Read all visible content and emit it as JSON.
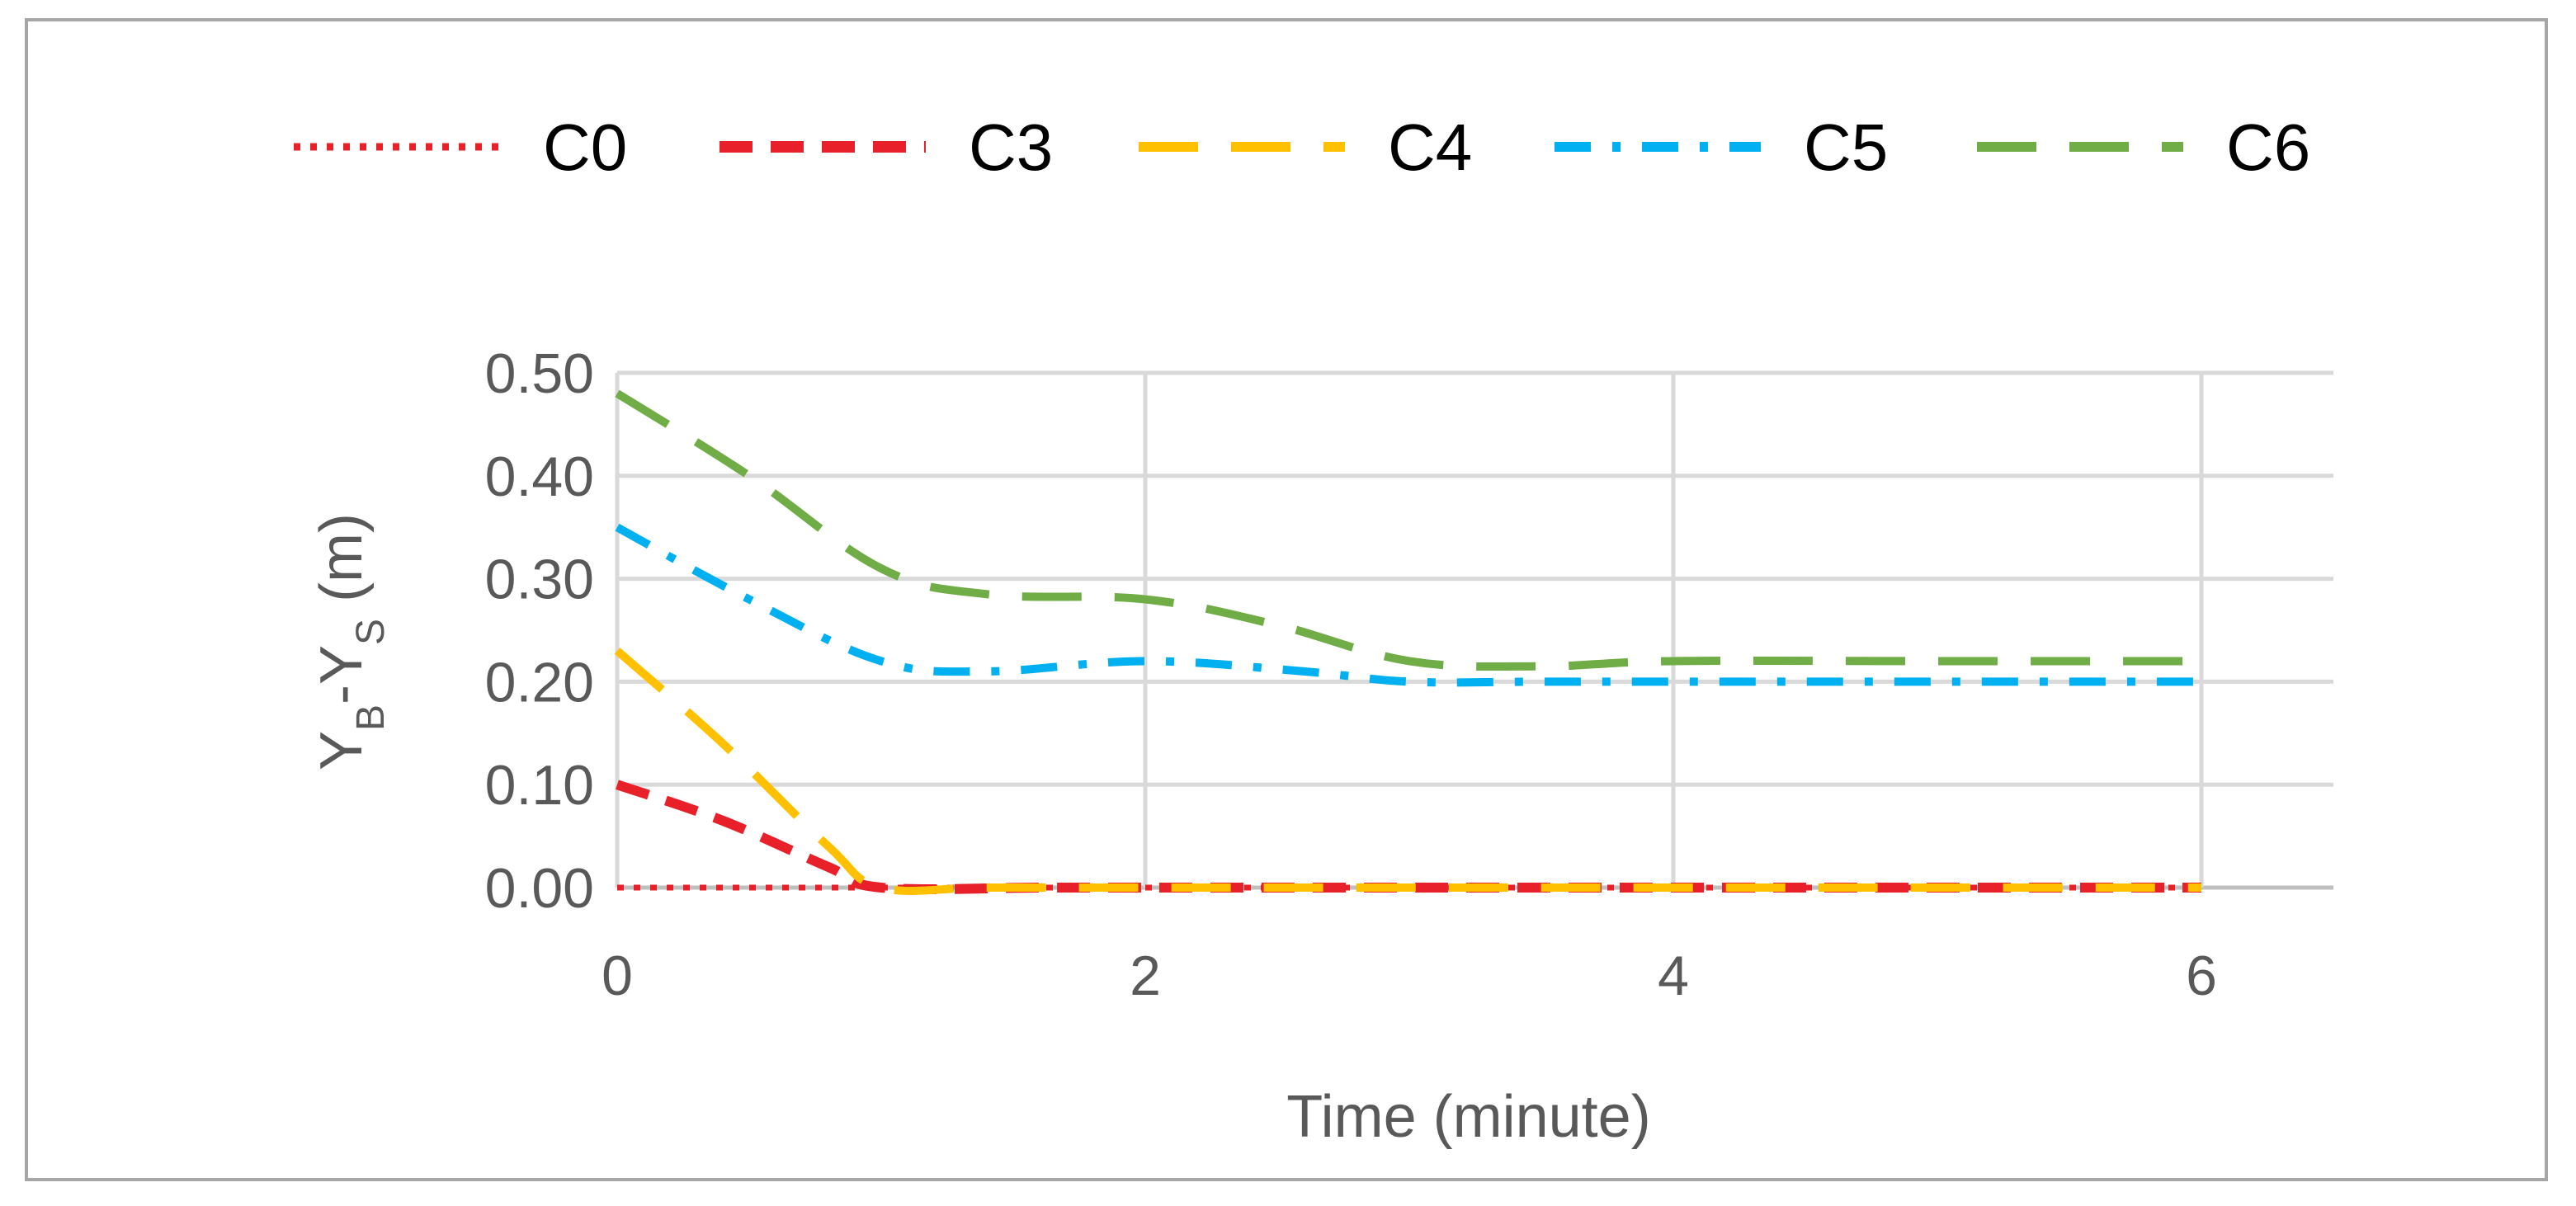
{
  "chart_data": {
    "type": "line",
    "xlabel": "Time (minute)",
    "ylabel_main": "Y",
    "ylabel_sub1": "B",
    "ylabel_mid": "-Y",
    "ylabel_sub2": "S",
    "ylabel_unit": " (m)",
    "xlim": [
      0,
      6.5
    ],
    "ylim": [
      0,
      0.5
    ],
    "xticks": [
      {
        "value": 0,
        "label": "0"
      },
      {
        "value": 2,
        "label": "2"
      },
      {
        "value": 4,
        "label": "4"
      },
      {
        "value": 6,
        "label": "6"
      }
    ],
    "yticks": [
      {
        "value": 0,
        "label": "0.00"
      },
      {
        "value": 0.1,
        "label": "0.10"
      },
      {
        "value": 0.2,
        "label": "0.20"
      },
      {
        "value": 0.3,
        "label": "0.30"
      },
      {
        "value": 0.4,
        "label": "0.40"
      },
      {
        "value": 0.5,
        "label": "0.50"
      }
    ],
    "grid": true,
    "legend_position": "top",
    "series": [
      {
        "name": "C0",
        "color": "#e8202a",
        "dash": "dotted",
        "x": [
          0,
          6
        ],
        "y": [
          0,
          0
        ]
      },
      {
        "name": "C3",
        "color": "#e8202a",
        "dash": "dashed",
        "x": [
          0,
          0.4,
          0.8,
          1.0,
          1.6,
          2,
          3,
          4,
          5,
          6
        ],
        "y": [
          0.1,
          0.065,
          0.02,
          0.0,
          0.0,
          0.0,
          0.0,
          0.0,
          0.0,
          0.0
        ]
      },
      {
        "name": "C4",
        "color": "#ffc000",
        "dash": "long-dash",
        "x": [
          0,
          0.4,
          0.8,
          1.0,
          1.4,
          2,
          3,
          4,
          5,
          6
        ],
        "y": [
          0.23,
          0.14,
          0.04,
          0.0,
          0.0,
          0.0,
          0.0,
          0.0,
          0.0,
          0.0
        ]
      },
      {
        "name": "C5",
        "color": "#00b0f0",
        "dash": "dash-dot",
        "x": [
          0,
          0.5,
          1.0,
          1.4,
          2,
          2.6,
          3,
          3.5,
          4,
          5,
          6
        ],
        "y": [
          0.35,
          0.28,
          0.22,
          0.21,
          0.22,
          0.21,
          0.2,
          0.2,
          0.2,
          0.2,
          0.2
        ]
      },
      {
        "name": "C6",
        "color": "#70ad47",
        "dash": "long-dash",
        "x": [
          0,
          0.5,
          1.0,
          1.4,
          2,
          2.5,
          3,
          3.5,
          4,
          5,
          6
        ],
        "y": [
          0.48,
          0.4,
          0.31,
          0.285,
          0.28,
          0.255,
          0.22,
          0.215,
          0.22,
          0.22,
          0.22
        ]
      }
    ]
  }
}
